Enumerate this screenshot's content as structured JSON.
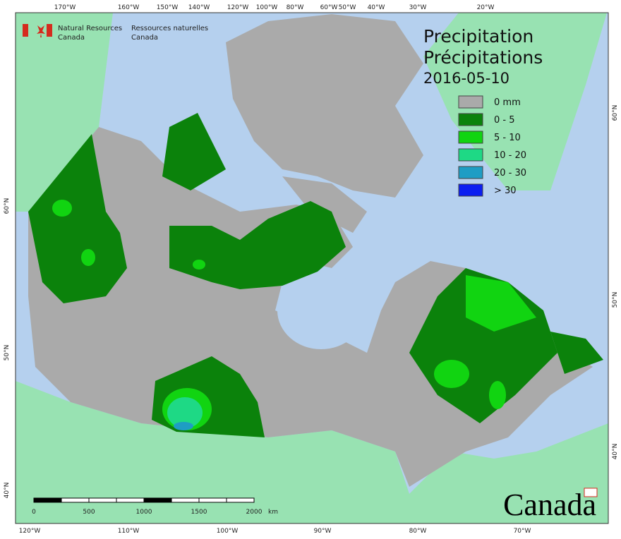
{
  "header": {
    "agency_en": [
      "Natural Resources",
      "Canada"
    ],
    "agency_fr": [
      "Ressources naturelles",
      "Canada"
    ]
  },
  "title": [
    "Precipitation",
    "Précipitations"
  ],
  "date": "2016-05-10",
  "legend": [
    {
      "label": "0 mm",
      "color": "#aaaaaa"
    },
    {
      "label": "0 - 5",
      "color": "#0b820b"
    },
    {
      "label": "5 - 10",
      "color": "#11d411"
    },
    {
      "label": "10 - 20",
      "color": "#1ed985"
    },
    {
      "label": "20 - 30",
      "color": "#1e9dc4"
    },
    {
      "label": "> 30",
      "color": "#0b1ef0"
    }
  ],
  "graticule": {
    "top": [
      "170°W",
      "160°W",
      "150°W",
      "140°W",
      "120°W",
      "100°W",
      "80°W",
      "60°W",
      "50°W",
      "40°W",
      "30°W",
      "20°W"
    ],
    "bottom": [
      "120°W",
      "110°W",
      "100°W",
      "90°W",
      "80°W",
      "70°W"
    ],
    "left": [
      "60°N",
      "50°N",
      "40°N"
    ],
    "right": [
      "60°N",
      "50°N",
      "40°N"
    ]
  },
  "scale_bar": {
    "ticks": [
      "0",
      "500",
      "1000",
      "1500",
      "2000"
    ],
    "unit": "km"
  },
  "wordmark": "Canada"
}
